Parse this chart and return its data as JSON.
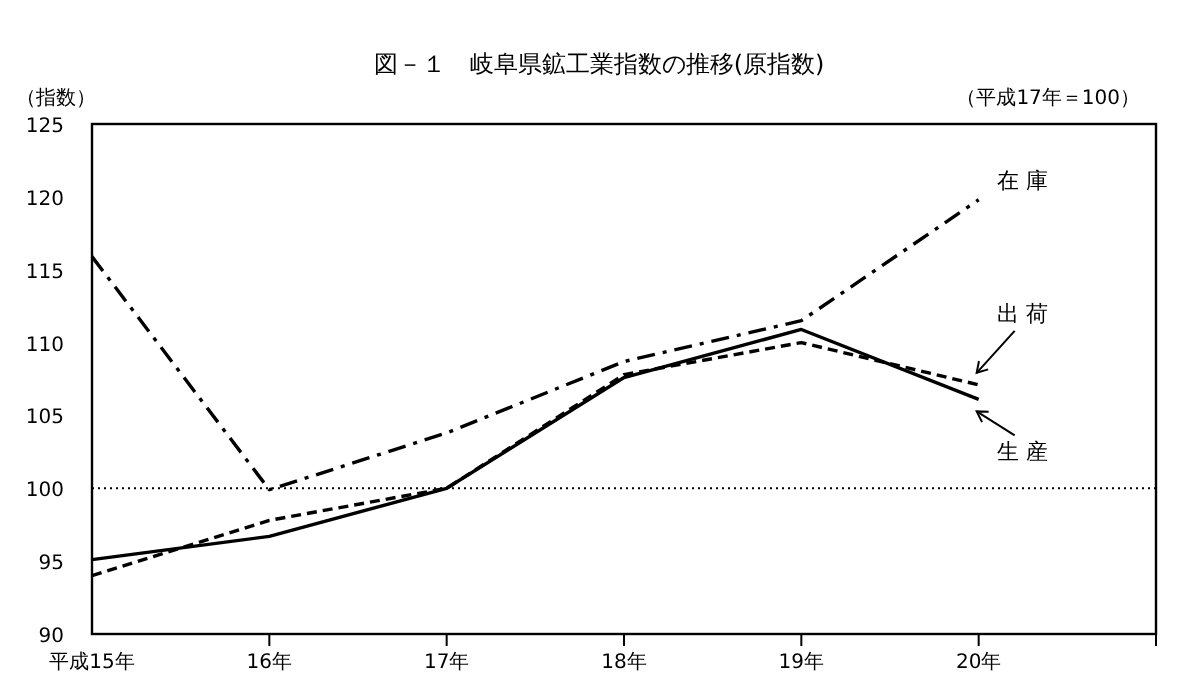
{
  "chart_data": {
    "type": "line",
    "title": "図－１　岐阜県鉱工業指数の推移(原指数)",
    "ylabel": "（指数）",
    "annotations": [
      "（平成17年＝100）"
    ],
    "categories": [
      "平成15年",
      "16年",
      "17年",
      "18年",
      "19年",
      "20年"
    ],
    "series": [
      {
        "name": "生 産",
        "color": "#000000",
        "line_style": "solid",
        "values": [
          95.1,
          96.7,
          100,
          107.6,
          110.9,
          106.1
        ]
      },
      {
        "name": "出 荷",
        "color": "#000000",
        "line_style": "dashed",
        "values": [
          94.0,
          97.8,
          100,
          107.8,
          110.0,
          107.1
        ]
      },
      {
        "name": "在 庫",
        "color": "#000000",
        "line_style": "dashdot",
        "values": [
          115.9,
          99.9,
          103.8,
          108.7,
          111.5,
          119.8
        ]
      }
    ],
    "ylim": [
      90,
      125
    ],
    "yticks": [
      90,
      95,
      100,
      105,
      110,
      115,
      120,
      125
    ],
    "ref_lines": [
      {
        "axis": "y",
        "value": 100,
        "line_style": "dotted",
        "color": "#000000"
      }
    ],
    "grid": false
  }
}
